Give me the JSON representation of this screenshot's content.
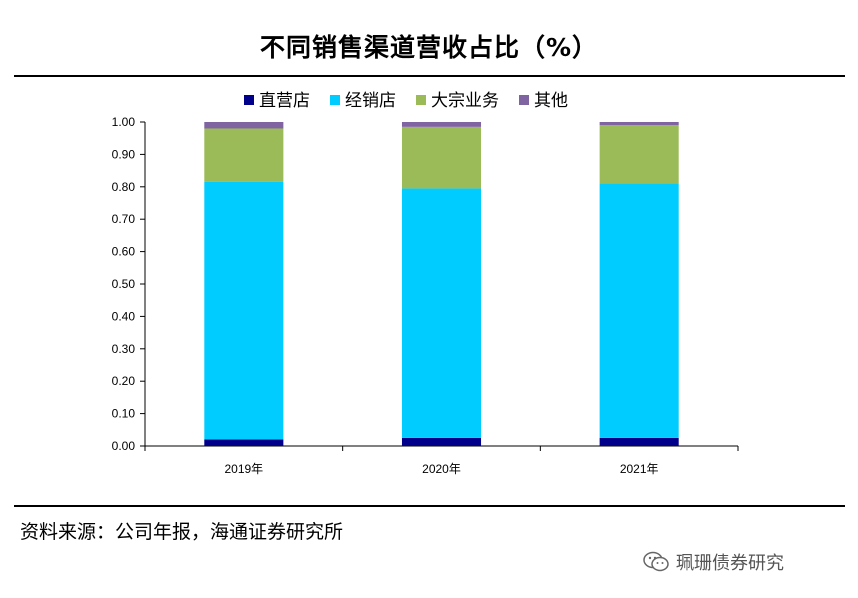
{
  "chart_data": {
    "type": "bar",
    "stacked": true,
    "title": "不同销售渠道营收占比（%）",
    "categories": [
      "2019年",
      "2020年",
      "2021年"
    ],
    "series": [
      {
        "name": "直营店",
        "color": "#00008B",
        "values": [
          0.02,
          0.025,
          0.025
        ]
      },
      {
        "name": "经销店",
        "color": "#00CCFF",
        "values": [
          0.795,
          0.77,
          0.785
        ]
      },
      {
        "name": "大宗业务",
        "color": "#9BBB59",
        "values": [
          0.165,
          0.19,
          0.18
        ]
      },
      {
        "name": "其他",
        "color": "#8064A2",
        "values": [
          0.02,
          0.015,
          0.01
        ]
      }
    ],
    "ylim": [
      0,
      1.0
    ],
    "yticks": [
      "0.00",
      "0.10",
      "0.20",
      "0.30",
      "0.40",
      "0.50",
      "0.60",
      "0.70",
      "0.80",
      "0.90",
      "1.00"
    ],
    "xlabel": "",
    "ylabel": "",
    "legend": "top"
  },
  "source_note": "资料来源：公司年报，海通证券研究所",
  "watermark": "珮珊债券研究"
}
